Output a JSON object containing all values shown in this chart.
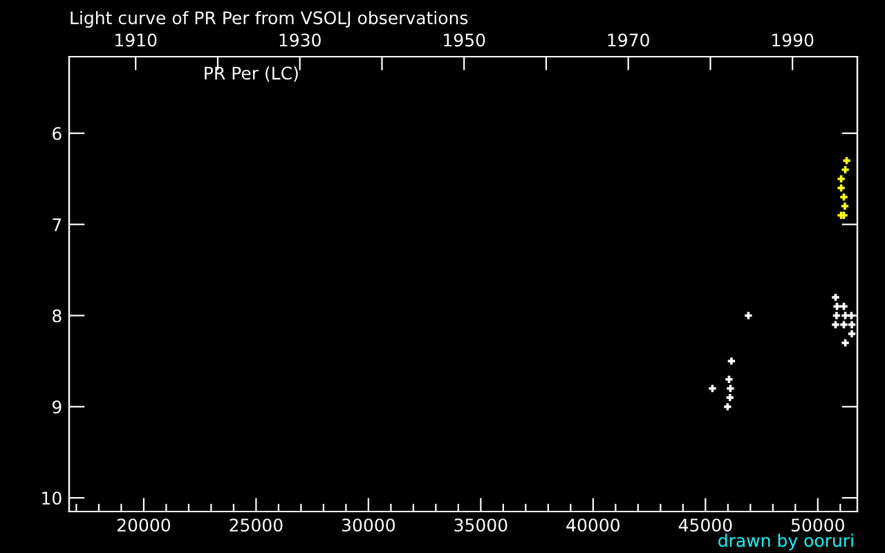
{
  "chart_data": {
    "type": "scatter",
    "title": "Light curve of PR Per from VSOLJ observations",
    "subtitle": "PR Per (LC)",
    "annotations": [
      "drawn by ooruri"
    ],
    "xlim": [
      16680,
      51760
    ],
    "xticks": [
      {
        "value": 17000,
        "label": null
      },
      {
        "value": 18000,
        "label": null
      },
      {
        "value": 19000,
        "label": null
      },
      20000,
      {
        "value": 21000,
        "label": null
      },
      {
        "value": 22000,
        "label": null
      },
      {
        "value": 23000,
        "label": null
      },
      {
        "value": 24000,
        "label": null
      },
      25000,
      {
        "value": 26000,
        "label": null
      },
      {
        "value": 27000,
        "label": null
      },
      {
        "value": 28000,
        "label": null
      },
      {
        "value": 29000,
        "label": null
      },
      30000,
      {
        "value": 31000,
        "label": null
      },
      {
        "value": 32000,
        "label": null
      },
      {
        "value": 33000,
        "label": null
      },
      {
        "value": 34000,
        "label": null
      },
      35000,
      {
        "value": 36000,
        "label": null
      },
      {
        "value": 37000,
        "label": null
      },
      {
        "value": 38000,
        "label": null
      },
      {
        "value": 39000,
        "label": null
      },
      40000,
      {
        "value": 41000,
        "label": null
      },
      {
        "value": 42000,
        "label": null
      },
      {
        "value": 43000,
        "label": null
      },
      {
        "value": 44000,
        "label": null
      },
      45000,
      {
        "value": 46000,
        "label": null
      },
      {
        "value": 47000,
        "label": null
      },
      {
        "value": 48000,
        "label": null
      },
      {
        "value": 49000,
        "label": null
      },
      50000,
      {
        "value": 51000,
        "label": null
      }
    ],
    "x2lim": [
      1901.9,
      1997.9
    ],
    "x2ticks": [
      1910,
      {
        "value": 1920,
        "label": null
      },
      1930,
      {
        "value": 1940,
        "label": null
      },
      1950,
      {
        "value": 1960,
        "label": null
      },
      1970,
      {
        "value": 1980,
        "label": null
      },
      1990
    ],
    "ylim": [
      10.15,
      5.16
    ],
    "yticks": [
      6,
      7,
      8,
      9,
      10
    ],
    "grid": false,
    "legend": false,
    "marker": "cross",
    "series": [
      {
        "color": "#ffff00",
        "x": [
          51285,
          51224,
          51040,
          51040,
          51160,
          51205,
          51040,
          51160
        ],
        "values": [
          6.3,
          6.4,
          6.5,
          6.6,
          6.7,
          6.8,
          6.9,
          6.9
        ]
      },
      {
        "color": "#ffffff",
        "x": [
          50790,
          50855,
          51160,
          50835,
          51225,
          51495,
          50790,
          51160,
          51515,
          51515,
          51225,
          46910,
          46155,
          46050,
          45310,
          46110,
          46090,
          45985
        ],
        "values": [
          7.8,
          7.9,
          7.9,
          8.0,
          8.0,
          8.0,
          8.1,
          8.1,
          8.1,
          8.2,
          8.3,
          8.0,
          8.5,
          8.7,
          8.8,
          8.8,
          8.9,
          9.0
        ]
      }
    ]
  }
}
